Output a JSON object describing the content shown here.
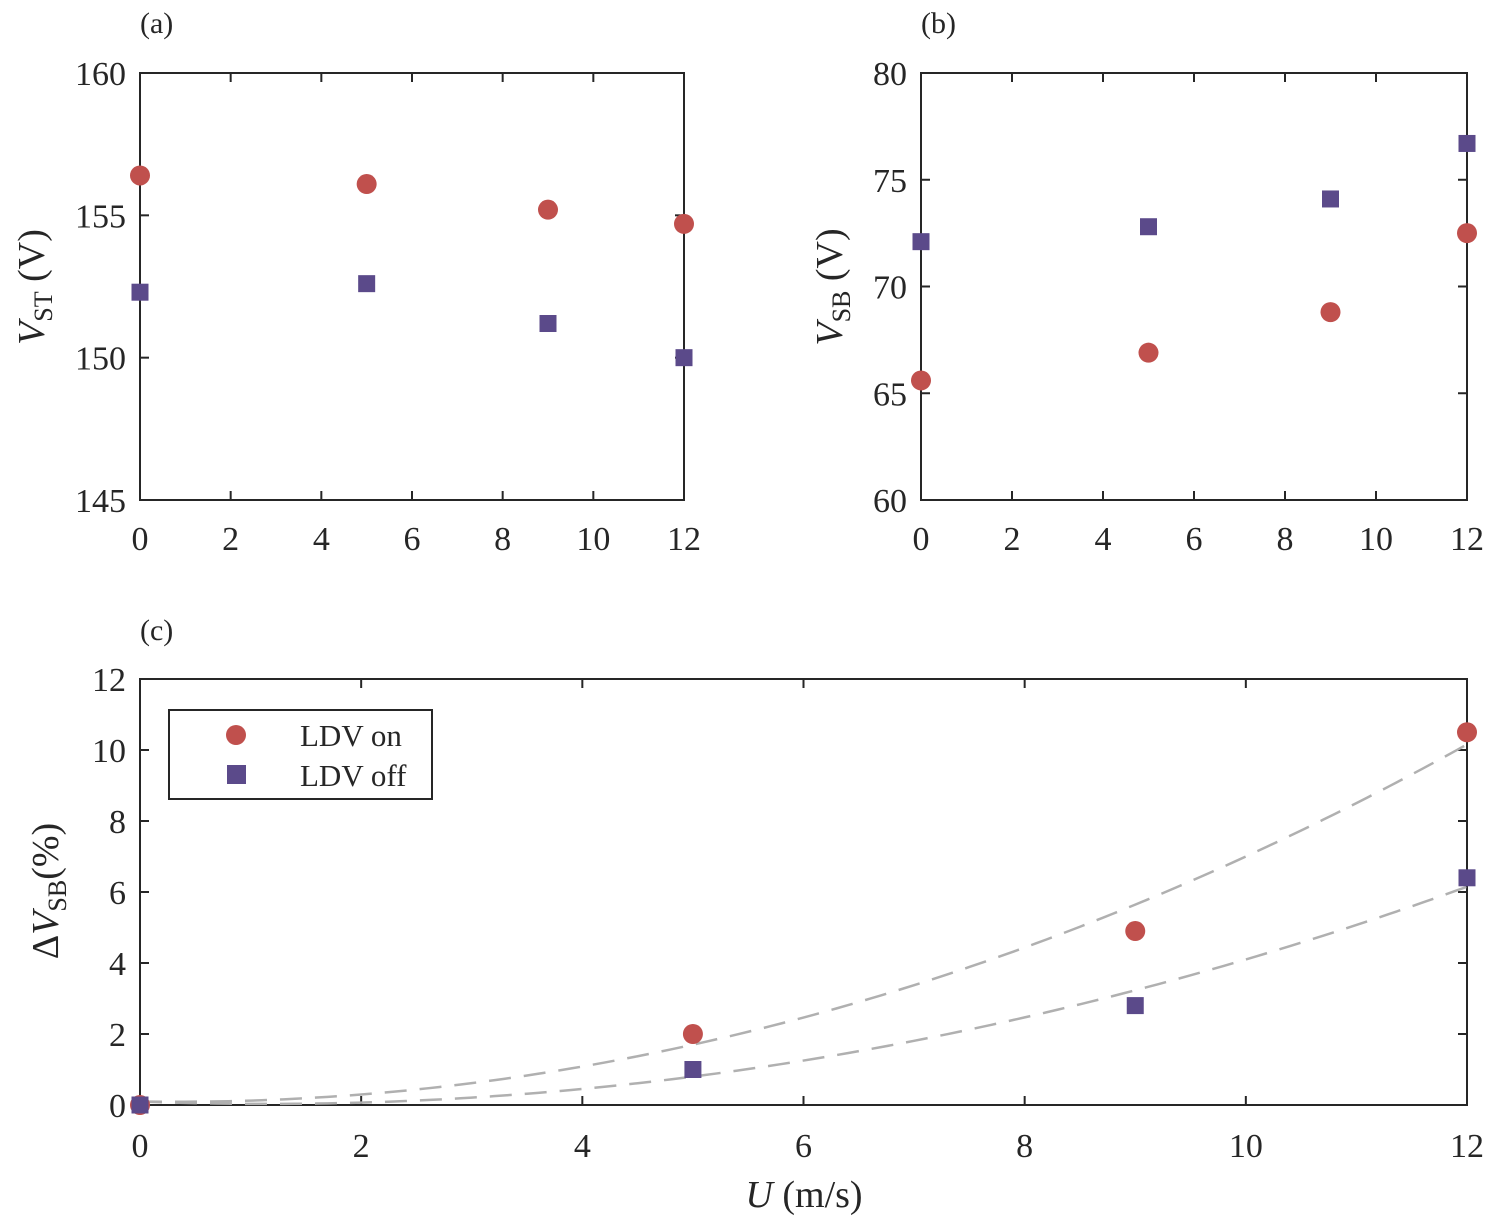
{
  "colors": {
    "ldv_on": "#c0504d",
    "ldv_off": "#5b4a8a",
    "axis": "#262626",
    "fit": "#b0b0b0"
  },
  "legend": {
    "on": "LDV on",
    "off": "LDV off"
  },
  "chart_data": [
    {
      "id": "a",
      "panel_label": "(a)",
      "type": "scatter",
      "ylabel": {
        "main": "V",
        "sub": "ST",
        "unit": "(V)"
      },
      "xlim": [
        0,
        12
      ],
      "ylim": [
        145,
        160
      ],
      "x_ticks": [
        "0",
        "2",
        "4",
        "6",
        "8",
        "10",
        "12"
      ],
      "y_ticks": [
        "145",
        "150",
        "155",
        "160"
      ],
      "series": [
        {
          "name": "LDV on",
          "marker": "circle",
          "x": [
            0,
            5,
            9,
            12
          ],
          "y": [
            156.4,
            156.1,
            155.2,
            154.7
          ]
        },
        {
          "name": "LDV off",
          "marker": "square",
          "x": [
            0,
            5,
            9,
            12
          ],
          "y": [
            152.3,
            152.6,
            151.2,
            150.0
          ]
        }
      ]
    },
    {
      "id": "b",
      "panel_label": "(b)",
      "type": "scatter",
      "ylabel": {
        "main": "V",
        "sub": "SB",
        "unit": "(V)"
      },
      "xlim": [
        0,
        12
      ],
      "ylim": [
        60,
        80
      ],
      "x_ticks": [
        "0",
        "2",
        "4",
        "6",
        "8",
        "10",
        "12"
      ],
      "y_ticks": [
        "60",
        "65",
        "70",
        "75",
        "80"
      ],
      "series": [
        {
          "name": "LDV on",
          "marker": "circle",
          "x": [
            0,
            5,
            9,
            12
          ],
          "y": [
            65.6,
            66.9,
            68.8,
            72.5
          ]
        },
        {
          "name": "LDV off",
          "marker": "square",
          "x": [
            0,
            5,
            9,
            12
          ],
          "y": [
            72.1,
            72.8,
            74.1,
            76.7
          ]
        }
      ]
    },
    {
      "id": "c",
      "panel_label": "(c)",
      "type": "scatter",
      "xlabel": {
        "main": "U",
        "unit": "(m/s)"
      },
      "ylabel": {
        "prefix": "Δ",
        "main": "V",
        "sub": "SB",
        "unit": "(%)"
      },
      "xlim": [
        0,
        12
      ],
      "ylim": [
        0,
        12
      ],
      "x_ticks": [
        "0",
        "2",
        "4",
        "6",
        "8",
        "10",
        "12"
      ],
      "y_ticks": [
        "0",
        "2",
        "4",
        "6",
        "8",
        "10",
        "12"
      ],
      "legend_position": "top-left",
      "series": [
        {
          "name": "LDV on",
          "marker": "circle",
          "x": [
            0,
            5,
            9,
            12
          ],
          "y": [
            0.0,
            2.0,
            4.9,
            10.5
          ]
        },
        {
          "name": "LDV off",
          "marker": "square",
          "x": [
            0,
            5,
            9,
            12
          ],
          "y": [
            0.0,
            1.0,
            2.8,
            6.4
          ]
        }
      ],
      "fits": [
        {
          "name": "fit LDV on",
          "style": "dashed",
          "coefficients": [
            0.1,
            -0.05,
            0.074
          ]
        },
        {
          "name": "fit LDV off",
          "style": "dashed",
          "coefficients": [
            0.1,
            -0.12,
            0.052
          ]
        }
      ]
    }
  ]
}
